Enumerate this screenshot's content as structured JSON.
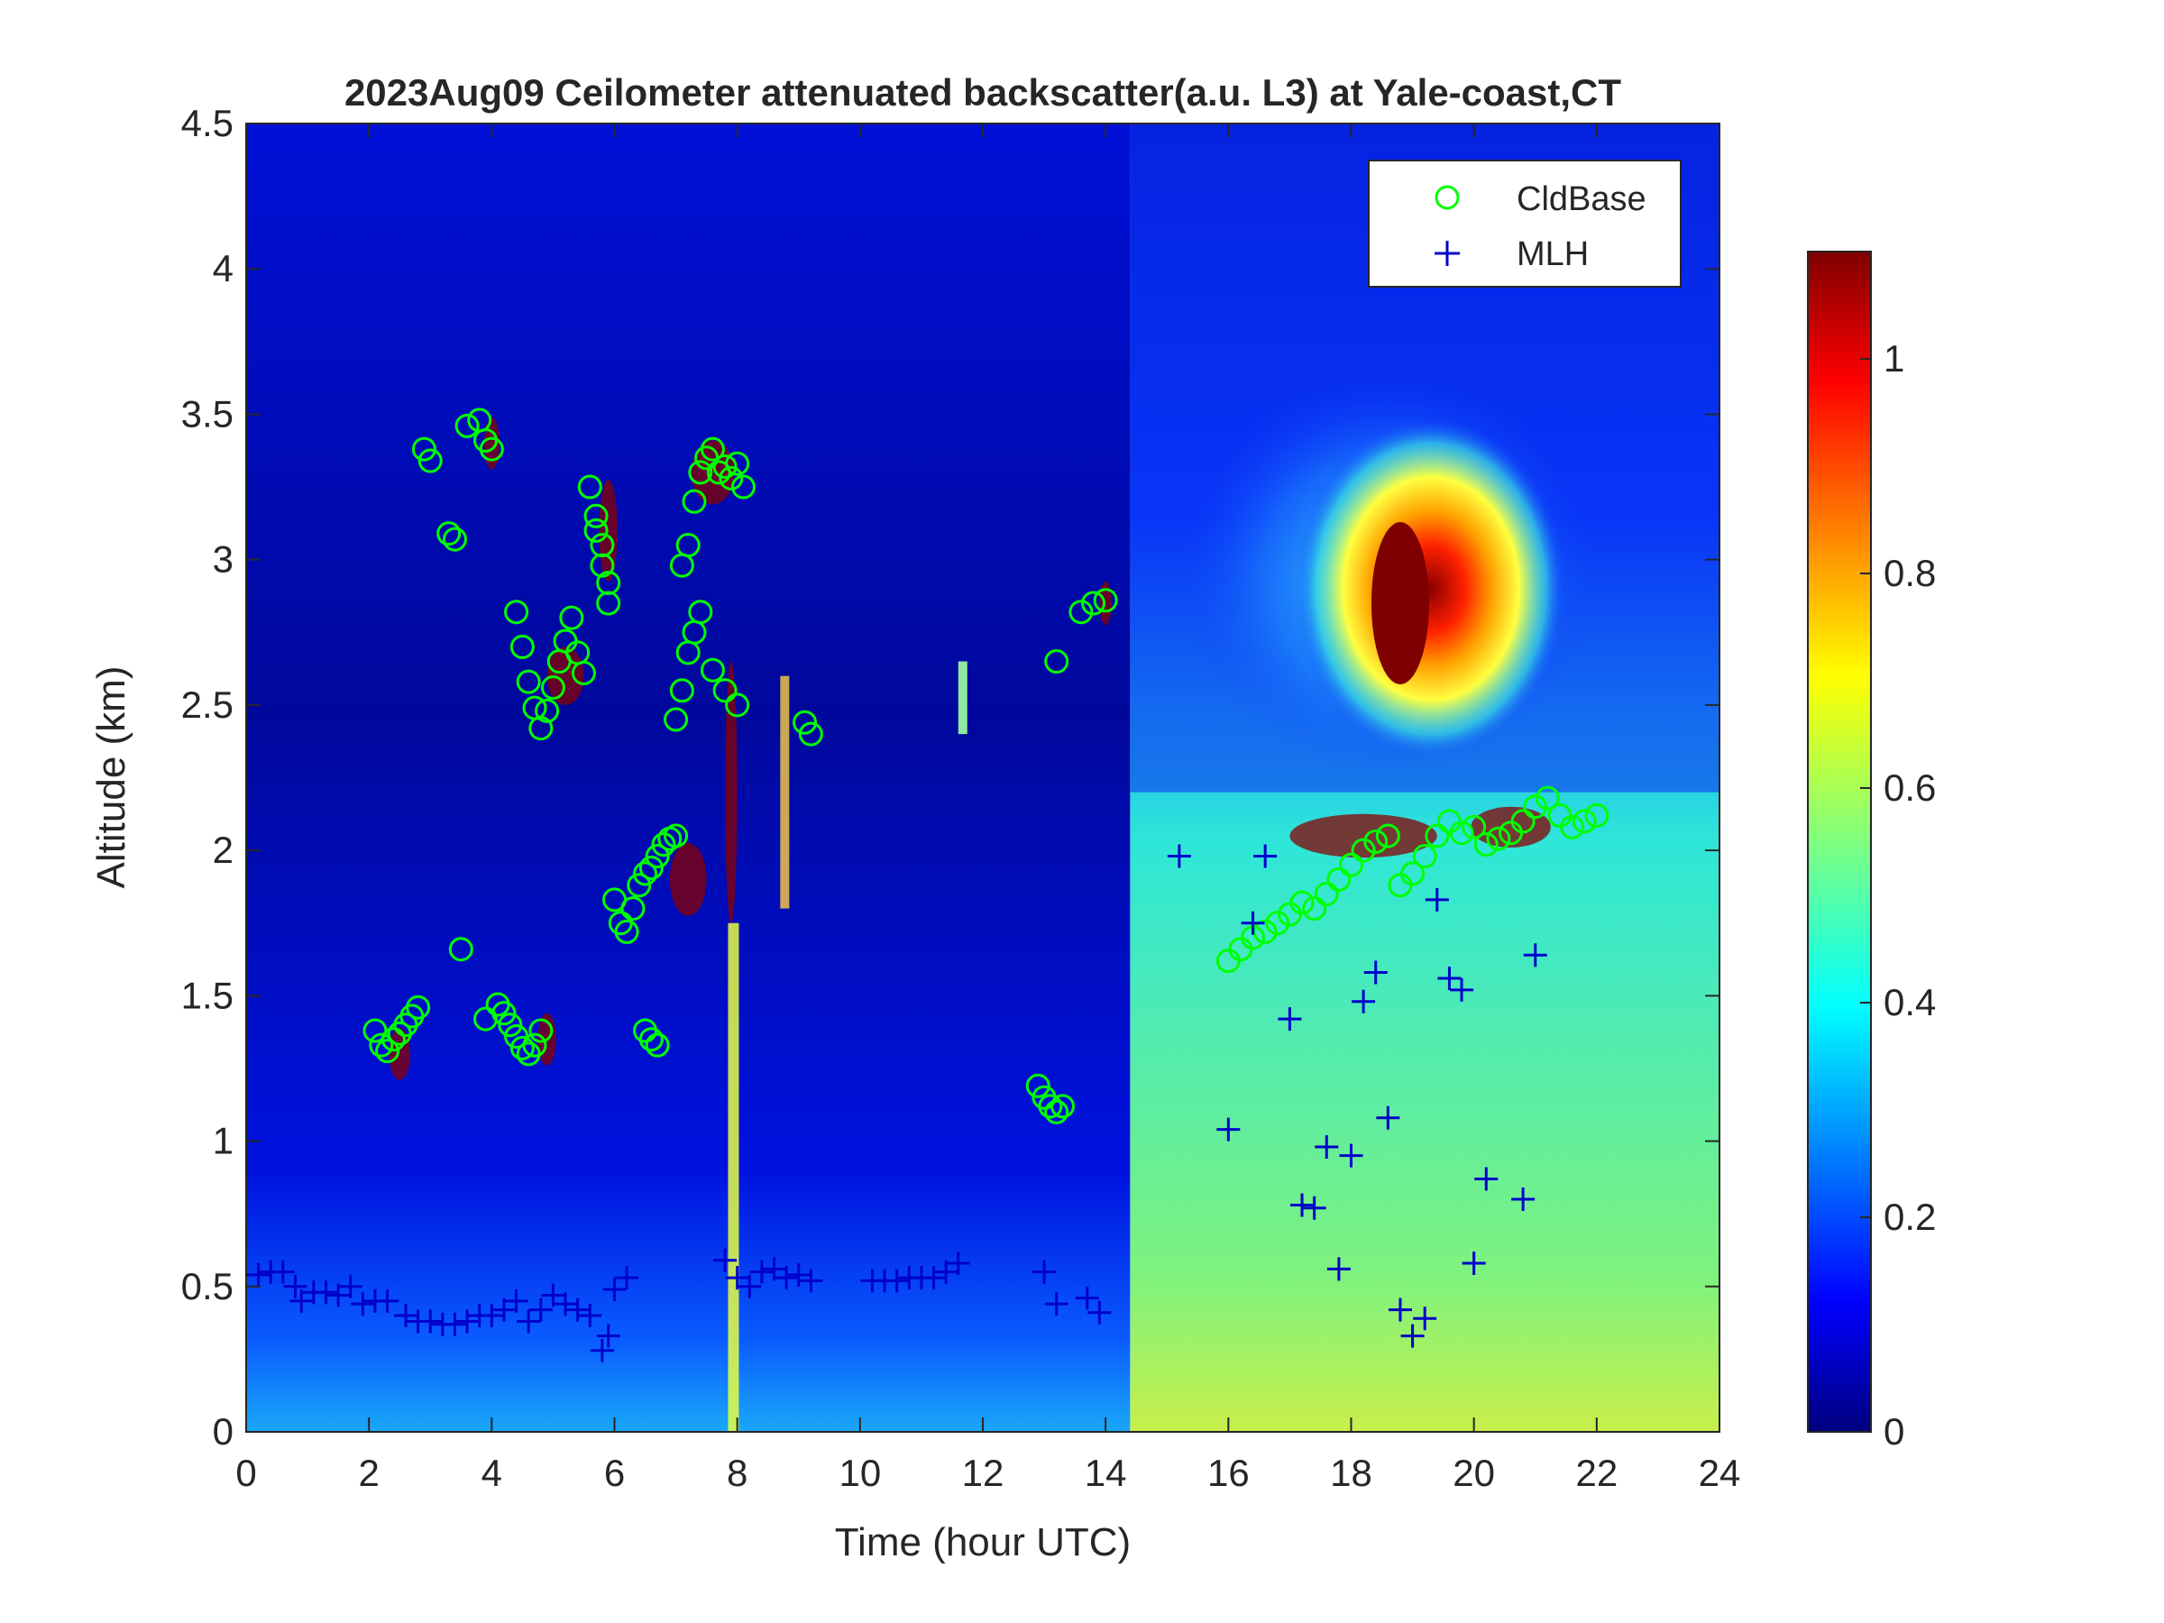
{
  "chart_data": {
    "type": "heatmap",
    "title": "2023Aug09 Ceilometer attenuated backscatter(a.u. L3) at Yale-coast,CT",
    "xlabel": "Time (hour UTC)",
    "ylabel": "Altitude (km)",
    "xlim": [
      0,
      24
    ],
    "ylim": [
      0,
      4.5
    ],
    "xticks": [
      0,
      2,
      4,
      6,
      8,
      10,
      12,
      14,
      16,
      18,
      20,
      22,
      24
    ],
    "yticks": [
      0,
      0.5,
      1,
      1.5,
      2,
      2.5,
      3,
      3.5,
      4,
      4.5
    ],
    "colorbar": {
      "colormap": "jet",
      "range": [
        0,
        1.1
      ],
      "ticks": [
        0,
        0.2,
        0.4,
        0.6,
        0.8,
        1
      ]
    },
    "legend_position": "top-right",
    "legend": [
      {
        "label": "CldBase",
        "marker": "circle",
        "color": "#00ff00"
      },
      {
        "label": "MLH",
        "marker": "plus",
        "color": "#0000cc"
      }
    ],
    "series": [
      {
        "name": "CldBase",
        "x": [
          2.1,
          2.2,
          2.3,
          2.4,
          2.5,
          2.6,
          2.7,
          2.8,
          2.9,
          3.0,
          3.3,
          3.4,
          3.5,
          3.6,
          3.8,
          3.9,
          4.0,
          4.1,
          4.2,
          4.3,
          4.4,
          4.5,
          4.6,
          4.7,
          4.8,
          4.4,
          4.5,
          4.6,
          4.7,
          4.8,
          4.9,
          5.0,
          5.1,
          5.2,
          5.3,
          5.4,
          5.5,
          5.7,
          5.8,
          5.9,
          5.6,
          5.7,
          5.8,
          5.9,
          6.0,
          6.1,
          6.2,
          6.3,
          6.4,
          6.5,
          6.6,
          6.7,
          6.8,
          6.9,
          7.0,
          7.1,
          7.2,
          7.3,
          7.4,
          7.5,
          7.6,
          7.7,
          7.8,
          7.9,
          8.0,
          8.1,
          7.0,
          7.1,
          7.2,
          7.3,
          7.4,
          7.6,
          7.8,
          8.0,
          6.5,
          6.6,
          6.7,
          3.9,
          9.1,
          9.2,
          12.9,
          13.0,
          13.1,
          13.2,
          13.3,
          13.2,
          13.6,
          13.8,
          14.0,
          16.0,
          16.2,
          16.4,
          16.6,
          16.8,
          17.0,
          17.2,
          17.4,
          17.6,
          17.8,
          18.0,
          18.2,
          18.4,
          18.6,
          18.8,
          19.0,
          19.2,
          19.4,
          19.6,
          19.8,
          20.0,
          20.2,
          20.4,
          20.6,
          20.8,
          21.0,
          21.2,
          21.4,
          21.6,
          21.8,
          22.0
        ],
        "y": [
          1.38,
          1.33,
          1.31,
          1.35,
          1.37,
          1.4,
          1.43,
          1.46,
          3.38,
          3.34,
          3.09,
          3.07,
          1.66,
          3.46,
          3.48,
          3.41,
          3.38,
          1.47,
          1.44,
          1.4,
          1.36,
          1.32,
          1.3,
          1.33,
          1.38,
          2.82,
          2.7,
          2.58,
          2.49,
          2.42,
          2.48,
          2.56,
          2.65,
          2.72,
          2.8,
          2.68,
          2.61,
          3.15,
          3.05,
          2.92,
          3.25,
          3.1,
          2.98,
          2.85,
          1.83,
          1.75,
          1.72,
          1.8,
          1.88,
          1.92,
          1.94,
          1.98,
          2.02,
          2.04,
          2.05,
          2.98,
          3.05,
          3.2,
          3.3,
          3.35,
          3.38,
          3.3,
          3.32,
          3.28,
          3.33,
          3.25,
          2.45,
          2.55,
          2.68,
          2.75,
          2.82,
          2.62,
          2.55,
          2.5,
          1.38,
          1.35,
          1.33,
          1.42,
          2.44,
          2.4,
          1.19,
          1.15,
          1.12,
          1.1,
          1.12,
          2.65,
          2.82,
          2.85,
          2.86,
          1.62,
          1.66,
          1.7,
          1.72,
          1.75,
          1.78,
          1.82,
          1.8,
          1.85,
          1.9,
          1.95,
          2.0,
          2.03,
          2.05,
          1.88,
          1.92,
          1.98,
          2.05,
          2.1,
          2.06,
          2.08,
          2.02,
          2.04,
          2.06,
          2.1,
          2.15,
          2.18,
          2.12,
          2.08,
          2.1,
          2.12
        ],
        "color": "#00ff00"
      },
      {
        "name": "MLH",
        "x": [
          0.2,
          0.4,
          0.6,
          0.8,
          0.9,
          1.1,
          1.3,
          1.5,
          1.7,
          1.9,
          2.1,
          2.3,
          2.6,
          2.8,
          3.0,
          3.2,
          3.4,
          3.6,
          3.8,
          4.0,
          4.2,
          4.4,
          4.6,
          4.8,
          5.0,
          5.2,
          5.4,
          5.6,
          5.8,
          5.9,
          6.0,
          6.2,
          7.8,
          8.0,
          8.2,
          8.4,
          8.6,
          8.8,
          9.0,
          9.2,
          10.2,
          10.4,
          10.6,
          10.8,
          11.0,
          11.2,
          11.4,
          11.6,
          13.0,
          13.2,
          13.7,
          13.9,
          15.2,
          16.0,
          16.4,
          16.6,
          17.0,
          17.2,
          17.4,
          17.6,
          17.8,
          18.0,
          18.2,
          18.4,
          18.6,
          18.8,
          19.0,
          19.2,
          19.4,
          19.6,
          19.8,
          20.0,
          20.2,
          20.8,
          21.0
        ],
        "y": [
          0.54,
          0.55,
          0.55,
          0.5,
          0.45,
          0.48,
          0.48,
          0.47,
          0.5,
          0.44,
          0.45,
          0.45,
          0.4,
          0.38,
          0.38,
          0.37,
          0.37,
          0.38,
          0.4,
          0.4,
          0.42,
          0.45,
          0.38,
          0.42,
          0.47,
          0.44,
          0.42,
          0.4,
          0.28,
          0.33,
          0.49,
          0.53,
          0.59,
          0.53,
          0.5,
          0.55,
          0.56,
          0.53,
          0.54,
          0.52,
          0.52,
          0.52,
          0.52,
          0.53,
          0.53,
          0.53,
          0.55,
          0.58,
          0.55,
          0.44,
          0.46,
          0.41,
          1.98,
          1.04,
          1.75,
          1.98,
          1.42,
          0.78,
          0.77,
          0.98,
          0.56,
          0.95,
          1.48,
          1.58,
          1.08,
          0.42,
          0.33,
          0.39,
          1.83,
          1.56,
          1.52,
          0.58,
          0.87,
          0.8,
          1.64
        ],
        "color": "#0000cc"
      }
    ]
  }
}
